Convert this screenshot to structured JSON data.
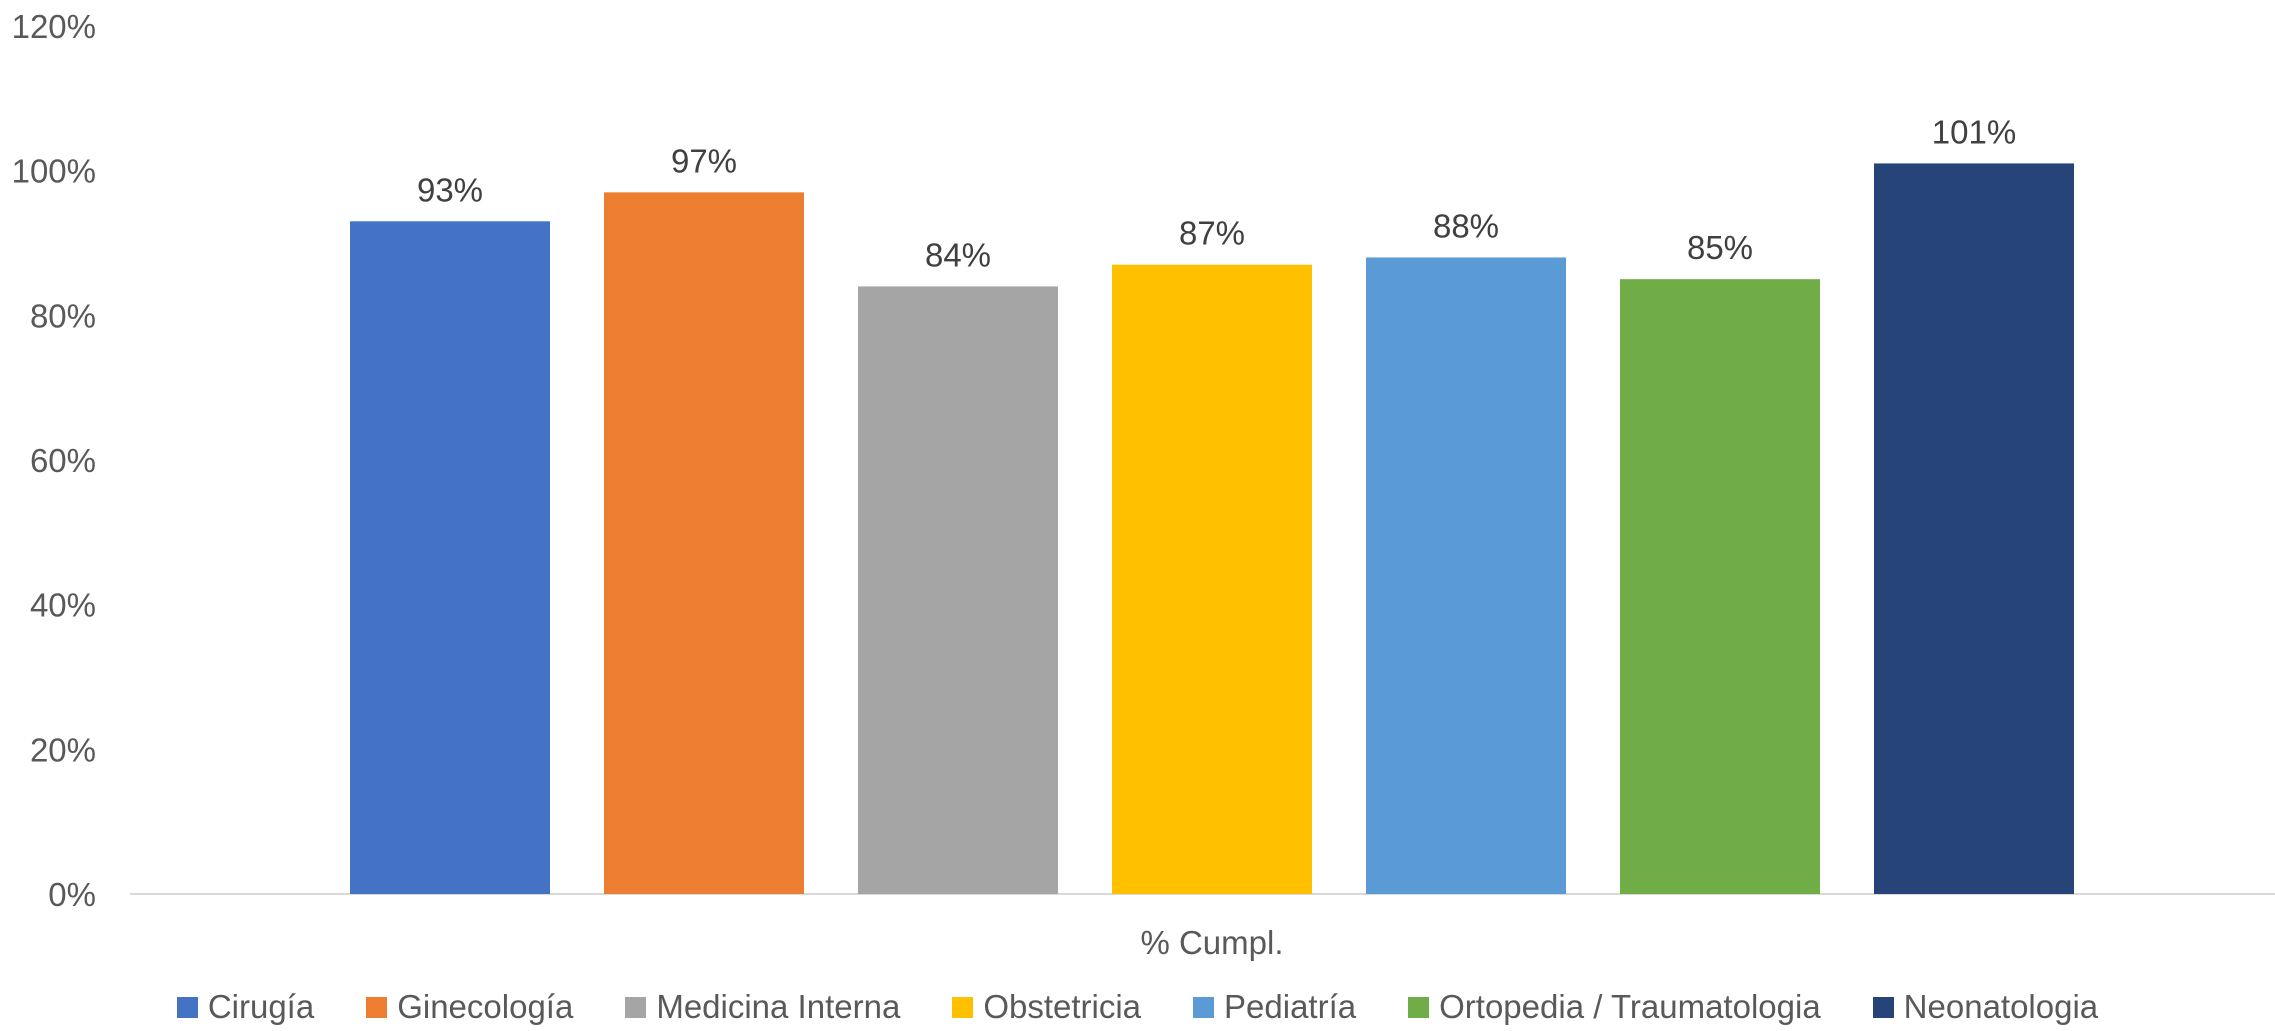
{
  "chart_data": {
    "type": "bar",
    "title": "",
    "xlabel": "",
    "ylabel": "",
    "categories": [
      "% Cumpl."
    ],
    "series": [
      {
        "name": "Cirugía",
        "values": [
          93
        ],
        "label": "93%",
        "color": "#4472C4"
      },
      {
        "name": "Ginecología",
        "values": [
          97
        ],
        "label": "97%",
        "color": "#ED7D31"
      },
      {
        "name": "Medicina Interna",
        "values": [
          84
        ],
        "label": "84%",
        "color": "#A5A5A5"
      },
      {
        "name": "Obstetricia",
        "values": [
          87
        ],
        "label": "87%",
        "color": "#FFC000"
      },
      {
        "name": "Pediatría",
        "values": [
          88
        ],
        "label": "88%",
        "color": "#5B9BD5"
      },
      {
        "name": "Ortopedia / Traumatologia",
        "values": [
          85
        ],
        "label": "85%",
        "color": "#70AD47"
      },
      {
        "name": "Neonatologia",
        "values": [
          101
        ],
        "label": "101%",
        "color": "#264478"
      }
    ],
    "ylim": [
      0,
      120
    ],
    "yticks": [
      0,
      20,
      40,
      60,
      80,
      100,
      120
    ],
    "ytick_labels": [
      "0%",
      "20%",
      "40%",
      "60%",
      "80%",
      "100%",
      "120%"
    ],
    "grid": false,
    "legend_position": "bottom"
  }
}
